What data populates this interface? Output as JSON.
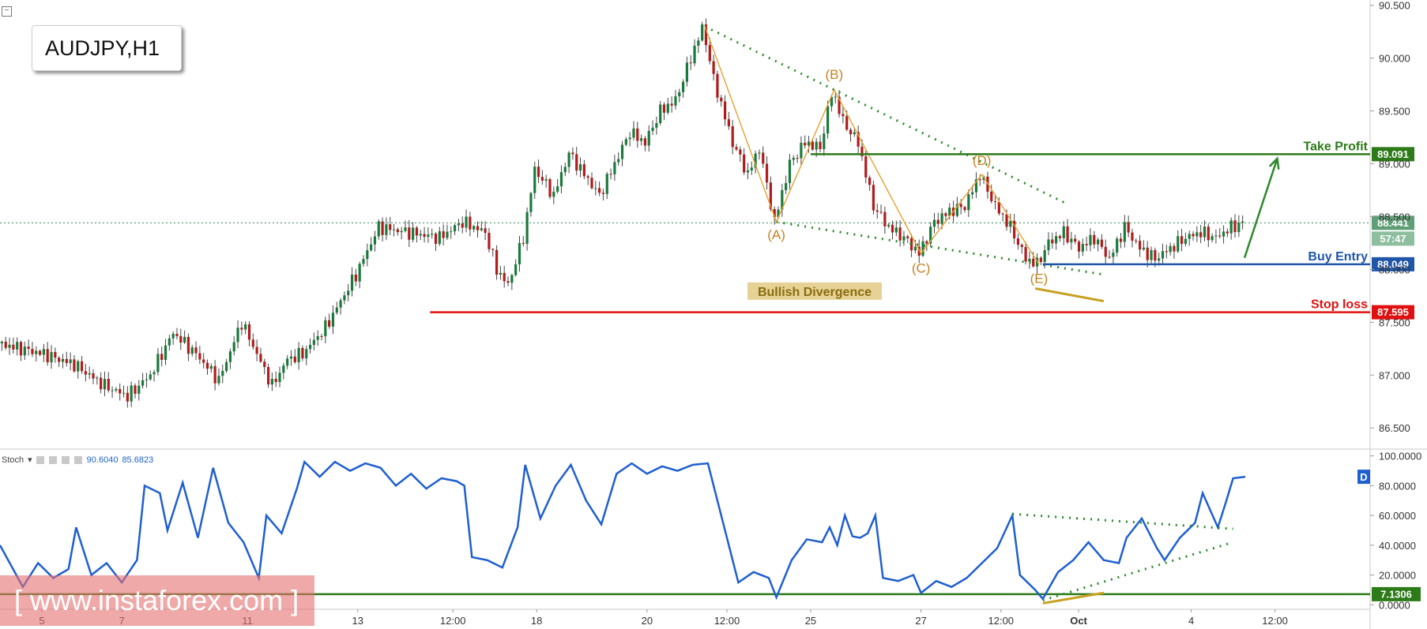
{
  "symbol": "AUDJPY,H1",
  "indicator": {
    "name": "Stoch",
    "value_k": "90.6040",
    "value_d": "85.6823",
    "badge": "D"
  },
  "watermark": "[ www.instaforex.com ]",
  "chart_data": [
    {
      "type": "candlestick",
      "title": "AUDJPY,H1",
      "price_axis": [
        "90.500",
        "90.000",
        "89.500",
        "89.000",
        "88.500",
        "88.000",
        "87.500",
        "87.000",
        "86.500"
      ],
      "ylim": [
        86.3,
        90.55
      ],
      "x_ticks": [
        "5",
        "7",
        "11",
        "13",
        "12:00",
        "18",
        "20",
        "12:00",
        "25",
        "27",
        "12:00",
        "Oct",
        "4",
        "12:00"
      ],
      "price_path": [
        [
          0,
          87.3
        ],
        [
          6,
          87.2
        ],
        [
          10,
          87.1
        ],
        [
          14,
          86.9
        ],
        [
          17,
          86.8
        ],
        [
          20,
          87.0
        ],
        [
          23,
          87.4
        ],
        [
          26,
          87.2
        ],
        [
          29,
          86.95
        ],
        [
          32,
          87.5
        ],
        [
          34,
          87.2
        ],
        [
          36,
          86.9
        ],
        [
          38,
          87.15
        ],
        [
          40,
          87.2
        ],
        [
          43,
          87.45
        ],
        [
          47,
          87.95
        ],
        [
          50,
          88.4
        ],
        [
          54,
          88.35
        ],
        [
          58,
          88.3
        ],
        [
          61,
          88.45
        ],
        [
          64,
          88.35
        ],
        [
          65.5,
          88.0
        ],
        [
          67,
          87.85
        ],
        [
          69,
          88.3
        ],
        [
          70.5,
          88.95
        ],
        [
          72,
          88.8
        ],
        [
          73,
          88.7
        ],
        [
          75,
          89.1
        ],
        [
          77,
          88.9
        ],
        [
          79,
          88.7
        ],
        [
          81,
          89.0
        ],
        [
          83,
          89.3
        ],
        [
          85,
          89.2
        ],
        [
          87,
          89.5
        ],
        [
          89,
          89.6
        ],
        [
          91,
          90.0
        ],
        [
          92.6,
          90.3
        ],
        [
          94,
          89.8
        ],
        [
          96.5,
          89.2
        ],
        [
          98.5,
          88.9
        ],
        [
          100,
          89.15
        ],
        [
          102,
          88.45
        ],
        [
          104,
          89.0
        ],
        [
          106,
          89.2
        ],
        [
          108,
          89.15
        ],
        [
          109.6,
          89.7
        ],
        [
          111,
          89.4
        ],
        [
          113,
          89.2
        ],
        [
          115,
          88.6
        ],
        [
          117,
          88.4
        ],
        [
          119,
          88.3
        ],
        [
          121,
          88.15
        ],
        [
          123,
          88.45
        ],
        [
          125,
          88.55
        ],
        [
          127,
          88.6
        ],
        [
          129,
          88.9
        ],
        [
          131,
          88.6
        ],
        [
          133,
          88.4
        ],
        [
          135,
          88.1
        ],
        [
          136.5,
          88.05
        ],
        [
          138,
          88.25
        ],
        [
          140,
          88.35
        ],
        [
          142,
          88.2
        ],
        [
          144,
          88.3
        ],
        [
          146,
          88.1
        ],
        [
          148,
          88.4
        ],
        [
          150,
          88.2
        ],
        [
          152,
          88.1
        ],
        [
          154,
          88.2
        ],
        [
          156,
          88.3
        ],
        [
          158,
          88.35
        ],
        [
          160,
          88.3
        ],
        [
          162,
          88.4
        ],
        [
          163.6,
          88.44
        ]
      ],
      "levels": [
        {
          "name": "Take Profit",
          "value": "89.091",
          "color": "#2d7a18"
        },
        {
          "name": "Buy Entry",
          "value": "88.049",
          "color": "#1f56a8"
        },
        {
          "name": "Stop loss",
          "value": "87.595",
          "color": "#e01010"
        }
      ],
      "last_price": "88.441",
      "countdown": "57:47",
      "wave_labels": [
        {
          "label": "(A)",
          "x": 102,
          "y": 88.45
        },
        {
          "label": "(B)",
          "x": 109.6,
          "y": 89.7
        },
        {
          "label": "(C)",
          "x": 121,
          "y": 88.15
        },
        {
          "label": "(D)",
          "x": 129,
          "y": 88.9
        },
        {
          "label": "(E)",
          "x": 136.5,
          "y": 88.05
        }
      ],
      "annotation": "Bullish Divergence"
    },
    {
      "type": "line",
      "name": "Stoch",
      "value_axis": [
        "100.0000",
        "80.0000",
        "60.0000",
        "40.0000",
        "20.0000",
        "0.0000"
      ],
      "ylim": [
        -3,
        103
      ],
      "marked_level": "7.1306",
      "values_path": [
        [
          0,
          40
        ],
        [
          3,
          12
        ],
        [
          5,
          28
        ],
        [
          7,
          18
        ],
        [
          9,
          24
        ],
        [
          10,
          52
        ],
        [
          12,
          20
        ],
        [
          14,
          28
        ],
        [
          16,
          15
        ],
        [
          18,
          30
        ],
        [
          19,
          80
        ],
        [
          21,
          75
        ],
        [
          22,
          50
        ],
        [
          24,
          82
        ],
        [
          26,
          45
        ],
        [
          28,
          92
        ],
        [
          30,
          55
        ],
        [
          32,
          42
        ],
        [
          34,
          18
        ],
        [
          35,
          60
        ],
        [
          37,
          48
        ],
        [
          39,
          78
        ],
        [
          40,
          96
        ],
        [
          42,
          86
        ],
        [
          44,
          96
        ],
        [
          46,
          90
        ],
        [
          48,
          95
        ],
        [
          50,
          92
        ],
        [
          52,
          80
        ],
        [
          54,
          88
        ],
        [
          56,
          78
        ],
        [
          58,
          85
        ],
        [
          60,
          83
        ],
        [
          61,
          80
        ],
        [
          62,
          32
        ],
        [
          64,
          30
        ],
        [
          66,
          25
        ],
        [
          68,
          52
        ],
        [
          69,
          94
        ],
        [
          71,
          58
        ],
        [
          73,
          80
        ],
        [
          75,
          94
        ],
        [
          77,
          70
        ],
        [
          79,
          54
        ],
        [
          81,
          88
        ],
        [
          83,
          95
        ],
        [
          85,
          88
        ],
        [
          87,
          93
        ],
        [
          89,
          90
        ],
        [
          91,
          94
        ],
        [
          93,
          95
        ],
        [
          95,
          55
        ],
        [
          97,
          15
        ],
        [
          99,
          22
        ],
        [
          101,
          18
        ],
        [
          102,
          5
        ],
        [
          104,
          30
        ],
        [
          106,
          44
        ],
        [
          108,
          42
        ],
        [
          109,
          52
        ],
        [
          110,
          40
        ],
        [
          111,
          60
        ],
        [
          112,
          46
        ],
        [
          113,
          45
        ],
        [
          114,
          48
        ],
        [
          115,
          60
        ],
        [
          116,
          18
        ],
        [
          118,
          16
        ],
        [
          120,
          20
        ],
        [
          121,
          8
        ],
        [
          123,
          16
        ],
        [
          125,
          12
        ],
        [
          127,
          18
        ],
        [
          129,
          28
        ],
        [
          131,
          38
        ],
        [
          133,
          60
        ],
        [
          134,
          20
        ],
        [
          136,
          10
        ],
        [
          137,
          4
        ],
        [
          139,
          22
        ],
        [
          141,
          30
        ],
        [
          143,
          42
        ],
        [
          145,
          30
        ],
        [
          147,
          28
        ],
        [
          148,
          45
        ],
        [
          150,
          58
        ],
        [
          152,
          38
        ],
        [
          153,
          30
        ],
        [
          155,
          45
        ],
        [
          157,
          55
        ],
        [
          158,
          75
        ],
        [
          160,
          52
        ],
        [
          161,
          68
        ],
        [
          162,
          85
        ],
        [
          163.6,
          86
        ]
      ]
    }
  ]
}
